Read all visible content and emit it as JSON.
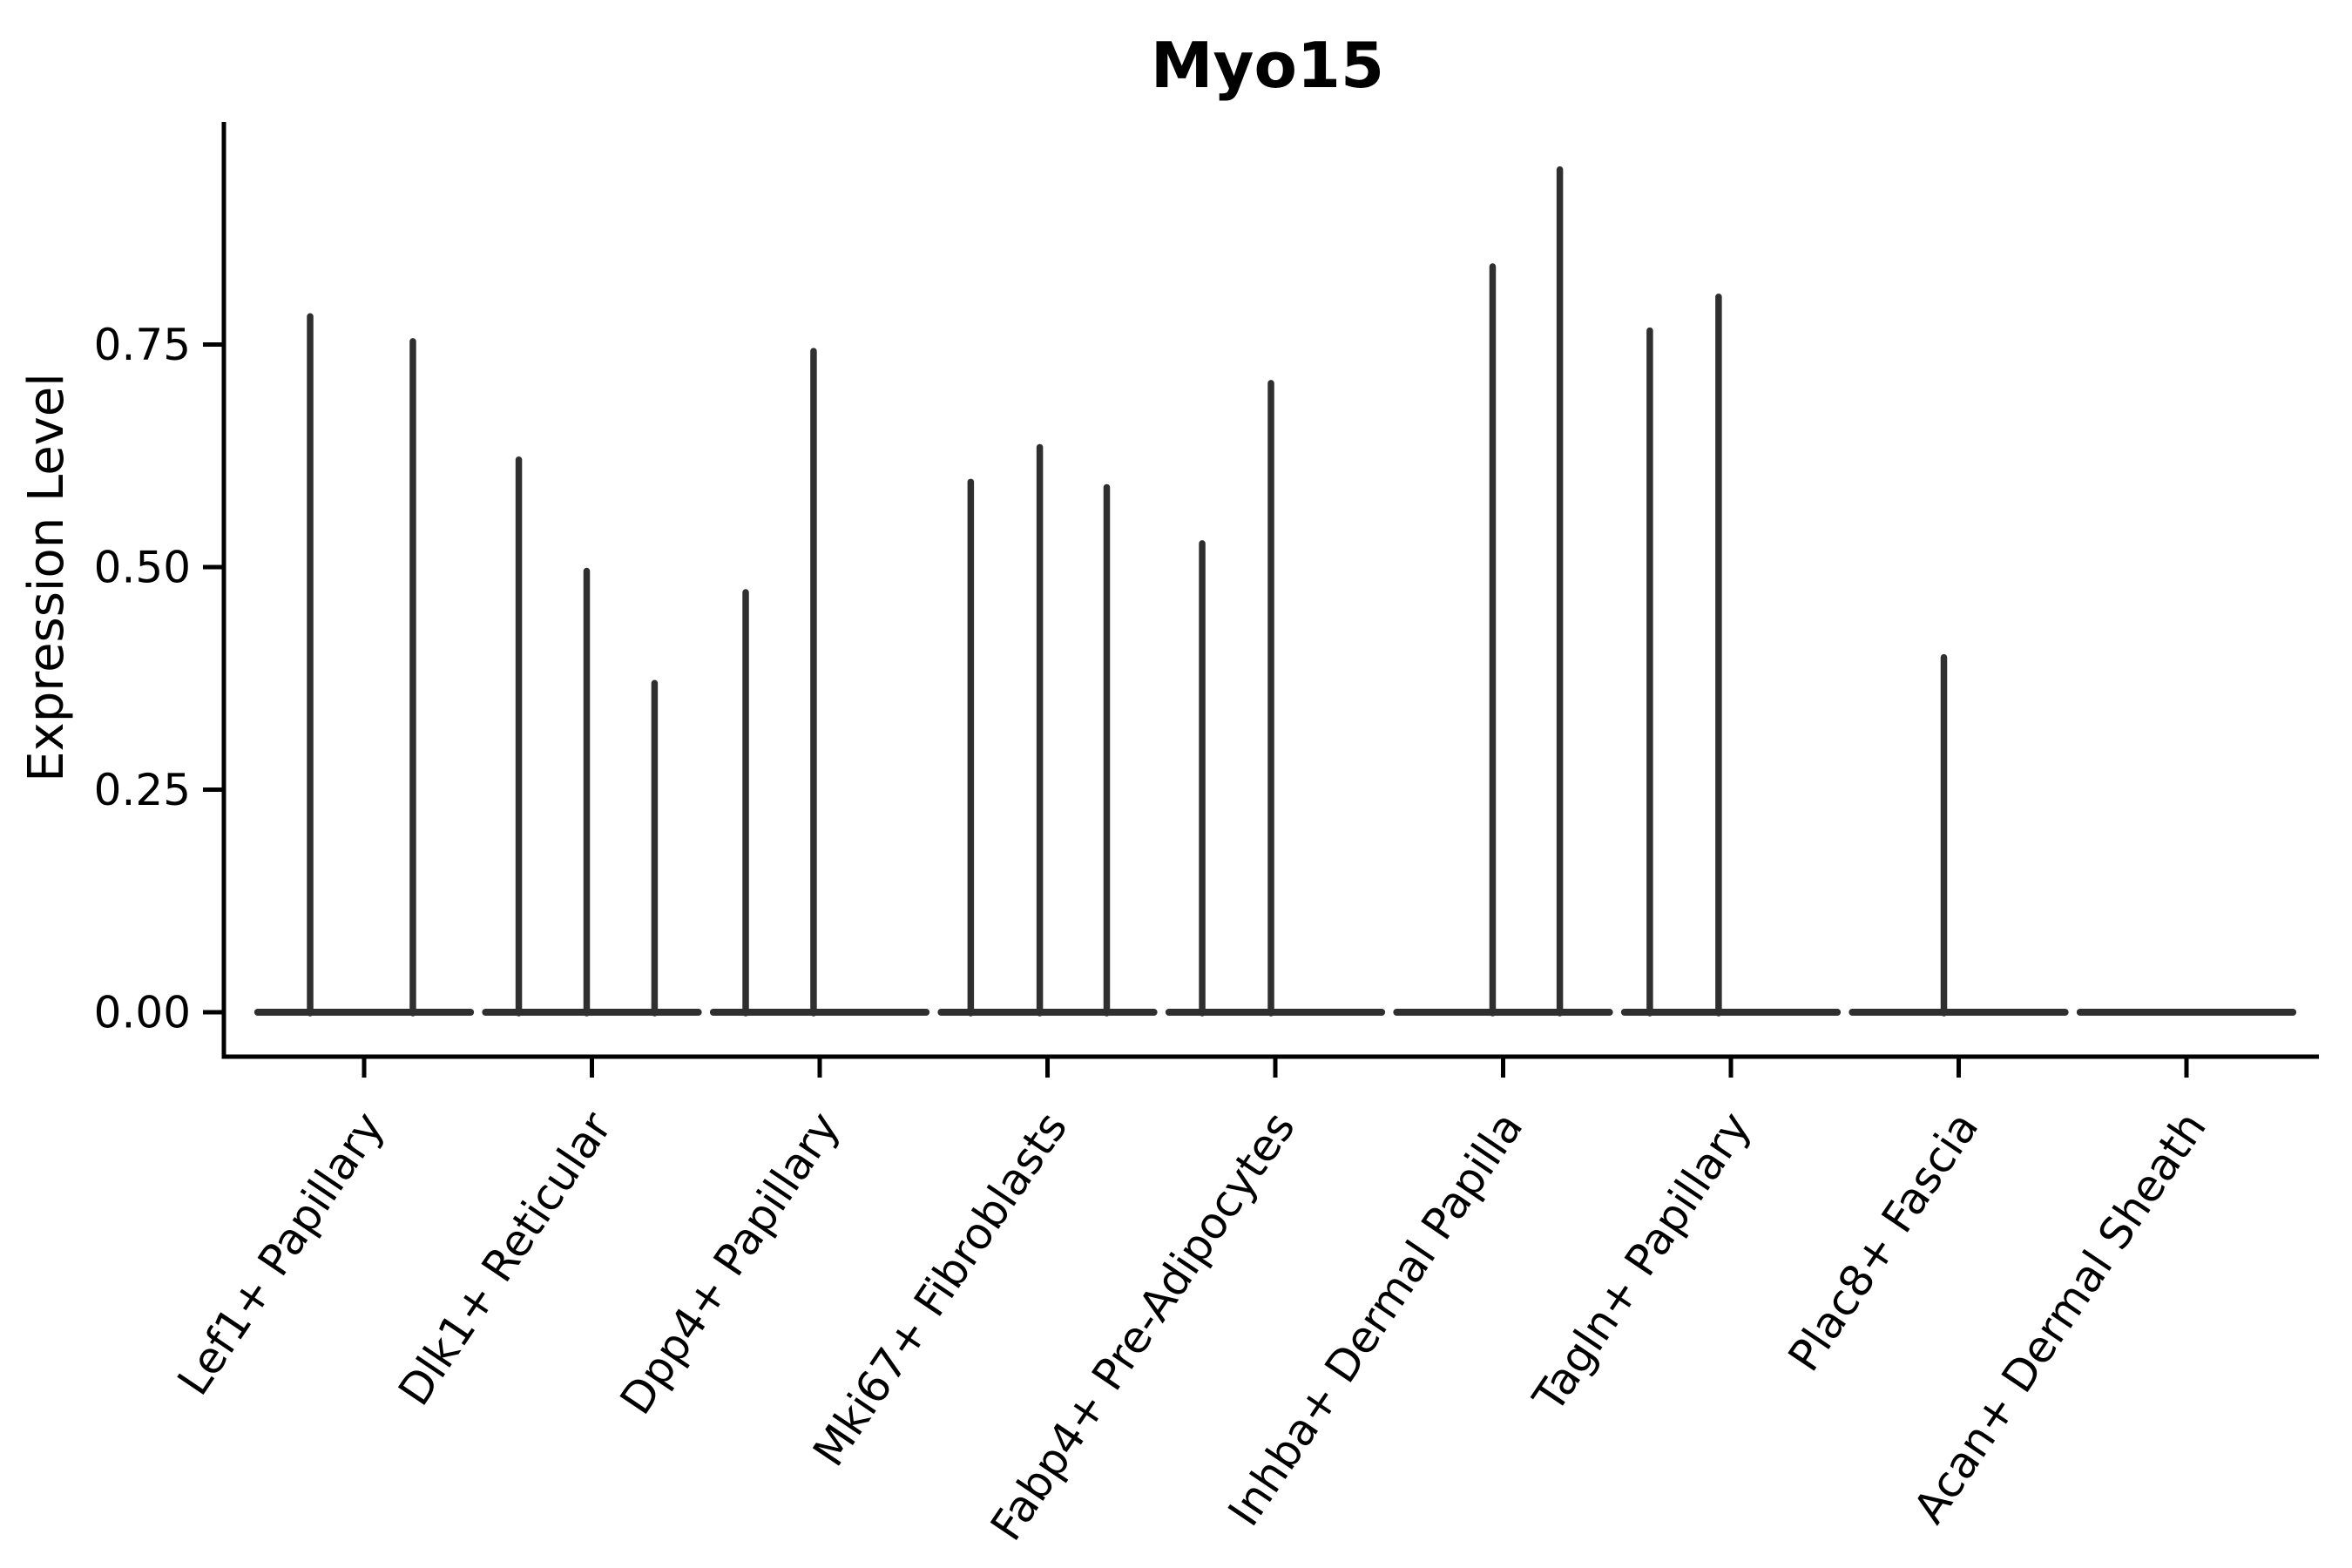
{
  "figure": {
    "title": "Myo15",
    "ylabel": "Expression Level"
  },
  "chart_data": {
    "type": "violin",
    "title": "Myo15",
    "xlabel": "",
    "ylabel": "Expression Level",
    "ylim": [
      -0.05,
      1.0
    ],
    "grid": false,
    "legend": "none",
    "axis_color": "#000000",
    "ink_color": "#2f2f2f",
    "yticks": [
      {
        "value": 0.0,
        "label": "0.00"
      },
      {
        "value": 0.25,
        "label": "0.25"
      },
      {
        "value": 0.5,
        "label": "0.50"
      },
      {
        "value": 0.75,
        "label": "0.75"
      }
    ],
    "categories": [
      {
        "label": "Lef1+ Papillary",
        "violins": [
          {
            "rel": -0.237,
            "max": 0.785
          },
          {
            "rel": 0.214,
            "max": 0.757
          }
        ]
      },
      {
        "label": "Dlk1+ Reticular",
        "violins": [
          {
            "rel": -0.321,
            "max": 0.624
          },
          {
            "rel": -0.023,
            "max": 0.499
          },
          {
            "rel": 0.275,
            "max": 0.373
          }
        ]
      },
      {
        "label": "Dpp4+ Papillary",
        "violins": [
          {
            "rel": -0.325,
            "max": 0.475
          },
          {
            "rel": -0.027,
            "max": 0.746
          }
        ]
      },
      {
        "label": "Mki67+ Fibroblasts",
        "violins": [
          {
            "rel": -0.337,
            "max": 0.599
          },
          {
            "rel": -0.034,
            "max": 0.638
          },
          {
            "rel": 0.26,
            "max": 0.593
          }
        ]
      },
      {
        "label": "Fabp4+ Pre-Adipocytes",
        "violins": [
          {
            "rel": -0.321,
            "max": 0.53
          },
          {
            "rel": -0.019,
            "max": 0.71
          }
        ]
      },
      {
        "label": "Inhba+ Dermal Papilla",
        "violins": [
          {
            "rel": -0.046,
            "max": 0.841
          },
          {
            "rel": 0.249,
            "max": 0.95
          }
        ]
      },
      {
        "label": "Tagln+ Papillary",
        "violins": [
          {
            "rel": -0.356,
            "max": 0.769
          },
          {
            "rel": -0.054,
            "max": 0.807
          }
        ]
      },
      {
        "label": "Plac8+ Fascia",
        "violins": [
          {
            "rel": -0.065,
            "max": 0.402
          }
        ]
      },
      {
        "label": "Acan+ Dermal Sheath",
        "violins": []
      }
    ],
    "baseline_halfwidth_rel": 0.467
  }
}
